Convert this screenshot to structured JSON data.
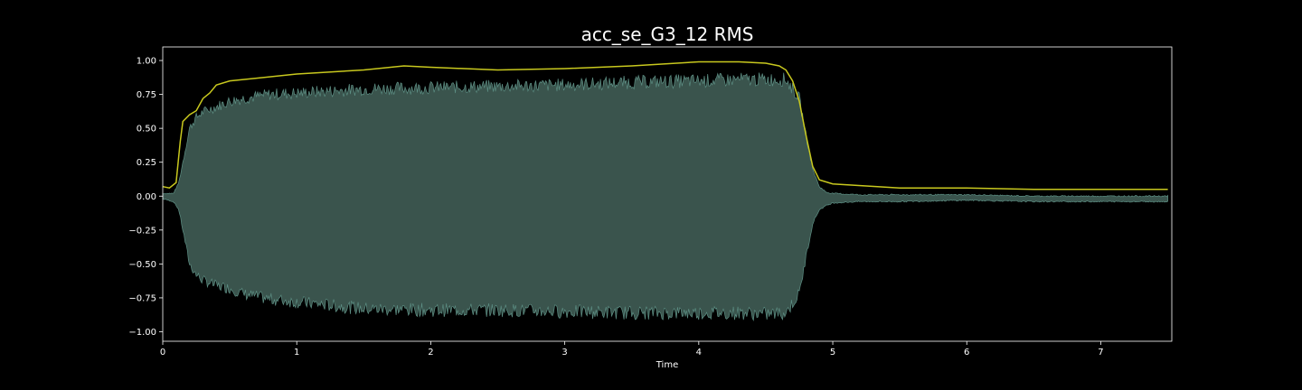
{
  "chart_data": {
    "type": "line",
    "title": "acc_se_G3_12 RMS",
    "xlabel": "Time",
    "ylabel": "",
    "xlim": [
      0,
      7.53
    ],
    "ylim": [
      -1.07,
      1.1
    ],
    "xticks": [
      0,
      1,
      2,
      3,
      4,
      5,
      6,
      7
    ],
    "yticks": [
      1.0,
      0.75,
      0.5,
      0.25,
      0.0,
      -0.25,
      -0.5,
      -0.75,
      -1.0
    ],
    "ytick_labels": [
      "1.00",
      "0.75",
      "0.50",
      "0.25",
      "0.00",
      "−0.25",
      "−0.50",
      "−0.75",
      "−1.00"
    ],
    "grid": false,
    "colors": {
      "background": "#000000",
      "waveform_fill": "#3a544d",
      "waveform_edge": "#5d8f84",
      "rms_line": "#c8c81e",
      "axes": "#ffffff"
    },
    "series": [
      {
        "kind": "waveform_envelope",
        "x": [
          0,
          0.08,
          0.12,
          0.16,
          0.2,
          0.25,
          0.3,
          0.35,
          0.4,
          0.5,
          0.6,
          0.8,
          1.0,
          1.5,
          2.0,
          2.5,
          3.0,
          3.5,
          4.0,
          4.3,
          4.5,
          4.65,
          4.75,
          4.8,
          4.85,
          4.9,
          4.95,
          5.0,
          5.2,
          5.5,
          6.0,
          6.5,
          7.0,
          7.5
        ],
        "upper": [
          0.02,
          0.02,
          0.1,
          0.3,
          0.5,
          0.58,
          0.62,
          0.64,
          0.66,
          0.7,
          0.72,
          0.75,
          0.76,
          0.79,
          0.8,
          0.81,
          0.82,
          0.84,
          0.85,
          0.86,
          0.86,
          0.86,
          0.72,
          0.45,
          0.2,
          0.07,
          0.03,
          0.02,
          0.01,
          0.01,
          0.01,
          0.0,
          0.0,
          0.0
        ],
        "lower": [
          -0.02,
          -0.04,
          -0.1,
          -0.3,
          -0.5,
          -0.58,
          -0.62,
          -0.64,
          -0.66,
          -0.68,
          -0.72,
          -0.76,
          -0.78,
          -0.83,
          -0.84,
          -0.84,
          -0.85,
          -0.86,
          -0.86,
          -0.86,
          -0.87,
          -0.86,
          -0.72,
          -0.45,
          -0.2,
          -0.1,
          -0.07,
          -0.05,
          -0.04,
          -0.04,
          -0.03,
          -0.04,
          -0.04,
          -0.04
        ]
      },
      {
        "kind": "rms",
        "x": [
          0,
          0.05,
          0.1,
          0.13,
          0.15,
          0.2,
          0.25,
          0.3,
          0.35,
          0.4,
          0.5,
          0.7,
          1.0,
          1.5,
          1.8,
          2.0,
          2.5,
          3.0,
          3.5,
          4.0,
          4.3,
          4.5,
          4.6,
          4.65,
          4.7,
          4.75,
          4.8,
          4.85,
          4.9,
          5.0,
          5.5,
          6.0,
          6.5,
          7.0,
          7.5
        ],
        "y": [
          0.07,
          0.06,
          0.1,
          0.4,
          0.55,
          0.6,
          0.63,
          0.72,
          0.76,
          0.82,
          0.85,
          0.87,
          0.9,
          0.93,
          0.96,
          0.95,
          0.93,
          0.94,
          0.96,
          0.99,
          0.99,
          0.98,
          0.96,
          0.93,
          0.85,
          0.7,
          0.45,
          0.22,
          0.12,
          0.09,
          0.06,
          0.06,
          0.05,
          0.05,
          0.05
        ]
      }
    ]
  }
}
